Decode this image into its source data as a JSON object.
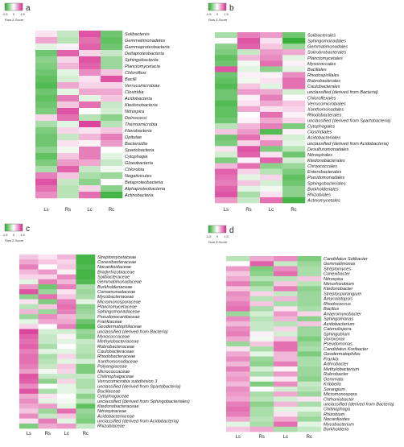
{
  "chart_data": [
    {
      "type": "heatmap",
      "panel_label": "a",
      "legend": {
        "ticks": [
          "-1.5",
          "0",
          "1.5"
        ],
        "label": "Row Z-Score"
      },
      "columns": [
        "Ls",
        "Rs",
        "Lc",
        "Rc"
      ],
      "rows": [
        "Solibacteres",
        "Gemmatimonadetes",
        "Gammaproteobacteria",
        "Deltaproteobacteria",
        "Sphingobacteriia",
        "Planctomycetacia",
        "Chloroflexi",
        "Bacilli",
        "Verrucomicrobiae",
        "Clostridia",
        "Acidobacteria",
        "Ktedonobacteria",
        "Nitrospira",
        "Deinococci",
        "Thermomicrobia",
        "Flavobacteria",
        "Opitutae",
        "Bacteroidia",
        "Spartobacteria",
        "Cytophagia",
        "Gloeobacteria",
        "Chlorobia",
        "Negativicutes",
        "Betaproteobacteria",
        "Alphaproteobacteria",
        "Actinobacteria"
      ],
      "values": [
        [
          0.2,
          -0.4,
          1.2,
          -1.0
        ],
        [
          0.6,
          -0.5,
          1.0,
          -1.1
        ],
        [
          -0.2,
          0.1,
          1.1,
          -1.0
        ],
        [
          -1.0,
          1.1,
          0.3,
          -0.4
        ],
        [
          -0.8,
          0.3,
          1.2,
          -0.7
        ],
        [
          -0.9,
          0.5,
          1.1,
          -0.7
        ],
        [
          -1.0,
          -0.2,
          0.8,
          0.4
        ],
        [
          -1.1,
          -0.3,
          0.2,
          1.2
        ],
        [
          -1.2,
          0.6,
          0.3,
          0.3
        ],
        [
          -1.0,
          -0.2,
          0.6,
          0.6
        ],
        [
          -1.1,
          0.9,
          -0.2,
          0.4
        ],
        [
          -1.0,
          0.4,
          1.0,
          -0.4
        ],
        [
          -0.9,
          1.2,
          0.0,
          -0.3
        ],
        [
          0.3,
          1.0,
          -0.5,
          -0.8
        ],
        [
          -0.6,
          -0.2,
          1.3,
          -0.5
        ],
        [
          -0.9,
          0.3,
          0.2,
          0.4
        ],
        [
          -1.0,
          -0.4,
          0.5,
          0.9
        ],
        [
          -1.0,
          0.2,
          0.1,
          0.7
        ],
        [
          -0.8,
          -0.1,
          0.9,
          0.0
        ],
        [
          -1.1,
          0.4,
          0.9,
          -0.2
        ],
        [
          -0.9,
          0.7,
          0.6,
          -0.4
        ],
        [
          -0.6,
          1.1,
          -0.4,
          -0.1
        ],
        [
          0.9,
          0.4,
          -0.6,
          -0.7
        ],
        [
          1.2,
          -0.4,
          -0.8,
          0.0
        ],
        [
          1.0,
          -0.5,
          0.3,
          -0.8
        ],
        [
          0.8,
          -0.5,
          1.0,
          -1.3
        ]
      ]
    },
    {
      "type": "heatmap",
      "panel_label": "b",
      "legend": {
        "ticks": [
          "-1.5",
          "0",
          "1.5"
        ],
        "label": "Row Z-Score"
      },
      "columns": [
        "Ls",
        "Rs",
        "Lc",
        "Rc"
      ],
      "rows": [
        "Solibacterales",
        "Sphingomonadales",
        "Gemmatimonadales",
        "Solirubrobacterales",
        "Planctomycetales",
        "Myxococcales",
        "Bacillales",
        "Rhodospirillales",
        "Rubrobacterales",
        "Caulobacterales",
        "unclassified (derived from Bacteria)",
        "Chloroflexales",
        "Verrucomicrobiales",
        "Xanthomonadales",
        "Rhodobacterales",
        "unclassified (derived from Spartobacteria)",
        "Cytophagales",
        "Clostridiales",
        "Acidobacteriales",
        "unclassified (derived from Acidobacteria)",
        "Desulfuromonadales",
        "Nitrospirales",
        "Ktedonobacterales",
        "Chroococcales",
        "Enterobacterales",
        "Pseudomonadales",
        "Sphingobacteriales",
        "Burkholderiales",
        "Rhizobiales",
        "Actinomycetales"
      ],
      "values": [
        [
          -0.6,
          0.9,
          0.7,
          -1.0
        ],
        [
          0.0,
          1.2,
          0.2,
          -1.4
        ],
        [
          -0.8,
          1.1,
          0.4,
          -0.7
        ],
        [
          -0.9,
          -0.4,
          0.7,
          0.6
        ],
        [
          -1.1,
          0.5,
          0.8,
          -0.2
        ],
        [
          -1.0,
          -0.1,
          1.0,
          0.1
        ],
        [
          1.2,
          -0.2,
          -0.8,
          -0.2
        ],
        [
          -1.0,
          0.1,
          0.1,
          0.8
        ],
        [
          -1.1,
          -0.1,
          0.2,
          1.0
        ],
        [
          -1.2,
          0.4,
          -0.2,
          1.0
        ],
        [
          -1.0,
          0.7,
          0.6,
          -0.3
        ],
        [
          -1.0,
          0.1,
          0.9,
          0.0
        ],
        [
          -1.2,
          0.2,
          0.6,
          0.4
        ],
        [
          -1.1,
          0.6,
          0.2,
          0.3
        ],
        [
          -1.1,
          0.0,
          1.0,
          0.1
        ],
        [
          -1.0,
          0.1,
          0.6,
          0.3
        ],
        [
          -0.5,
          0.5,
          0.9,
          -0.9
        ],
        [
          0.4,
          0.7,
          -1.2,
          0.1
        ],
        [
          -1.0,
          1.0,
          0.3,
          -0.3
        ],
        [
          -0.9,
          0.3,
          0.8,
          -0.2
        ],
        [
          0.2,
          1.2,
          -0.9,
          -0.5
        ],
        [
          -0.3,
          1.1,
          0.2,
          -1.0
        ],
        [
          -0.9,
          0.1,
          1.1,
          -0.3
        ],
        [
          0.5,
          1.0,
          -0.8,
          -0.7
        ],
        [
          1.1,
          0.3,
          -0.5,
          -0.9
        ],
        [
          1.0,
          -0.2,
          0.3,
          -1.1
        ],
        [
          0.9,
          0.4,
          -0.3,
          -1.0
        ],
        [
          1.1,
          -0.2,
          -0.1,
          -0.8
        ],
        [
          1.2,
          -0.6,
          0.2,
          -0.8
        ],
        [
          0.7,
          -0.4,
          1.0,
          -1.3
        ]
      ]
    },
    {
      "type": "heatmap",
      "panel_label": "c",
      "legend": {
        "ticks": [
          "-1.5",
          "0",
          "1.5"
        ],
        "label": "Row Z-Score"
      },
      "columns": [
        "Ls",
        "Rs",
        "Lc",
        "Rc"
      ],
      "rows": [
        "Streptomycetaceae",
        "Conexibacteraceae",
        "Nocardioidaceae",
        "Bradyrhizobiaceae",
        "Solibacteraceae",
        "Gemmatimonadaceae",
        "Burkholderiaceae",
        "Comamonadaceae",
        "Mycobacteriaceae",
        "Micromonosporaceae",
        "Planctomycetaceae",
        "Sphingomonadaceae",
        "Pseudonocardiaceae",
        "Frankiaceae",
        "Geodermatophilaceae",
        "unclassified (derived from Bacteria)",
        "Myxococcaceae",
        "Methylobacteriaceae",
        "Rubrobacteraceae",
        "Caulobacteraceae",
        "Rhodobacteraceae",
        "Xanthomonadaceae",
        "Polyangiaceae",
        "Micrococcaceae",
        "Chitinophagaceae",
        "Verrucomicrobia subdivision 3",
        "unclassified (derived from Spartobacteria)",
        "Bacillaceae",
        "Cytophagaceae",
        "unclassified (derived from Sphingobacteriales)",
        "Ktedonobacteraceae",
        "Nitrospiraceae",
        "Acidobacteriaceae",
        "unclassified (derived from Acidobacteria)",
        "Rhizobiaceae"
      ],
      "values": [
        [
          0.4,
          0.2,
          0.5,
          -1.3
        ],
        [
          0.6,
          0.4,
          0.3,
          -1.3
        ],
        [
          0.9,
          0.0,
          0.4,
          -1.2
        ],
        [
          0.5,
          0.7,
          0.1,
          -1.3
        ],
        [
          0.3,
          0.3,
          0.8,
          -1.3
        ],
        [
          -0.2,
          0.9,
          0.5,
          -1.2
        ],
        [
          0.7,
          -1.0,
          0.9,
          -0.6
        ],
        [
          1.2,
          -0.7,
          0.2,
          -0.7
        ],
        [
          -0.8,
          1.0,
          0.4,
          -0.6
        ],
        [
          0.2,
          -0.9,
          0.9,
          -0.2
        ],
        [
          -0.5,
          0.4,
          1.0,
          -0.8
        ],
        [
          0.5,
          -0.7,
          0.9,
          -0.7
        ],
        [
          -0.7,
          0.8,
          0.5,
          -0.6
        ],
        [
          -0.2,
          0.6,
          0.6,
          -1.0
        ],
        [
          0.3,
          0.0,
          0.9,
          -1.2
        ],
        [
          1.3,
          -0.3,
          -0.3,
          -0.7
        ],
        [
          1.1,
          -0.4,
          0.1,
          -0.8
        ],
        [
          1.0,
          -0.4,
          -0.2,
          -0.4
        ],
        [
          1.1,
          -0.6,
          0.0,
          -0.5
        ],
        [
          0.9,
          -0.2,
          -0.2,
          -0.5
        ],
        [
          1.0,
          -0.6,
          0.3,
          -0.6
        ],
        [
          1.0,
          -0.5,
          -0.2,
          -0.3
        ],
        [
          0.9,
          -0.4,
          0.4,
          -0.9
        ],
        [
          0.7,
          -0.1,
          0.3,
          -0.9
        ],
        [
          1.2,
          -0.4,
          -0.4,
          -0.4
        ],
        [
          1.1,
          -0.8,
          0.3,
          -0.6
        ],
        [
          0.8,
          0.0,
          -0.2,
          -0.6
        ],
        [
          1.2,
          -0.6,
          -0.2,
          -0.4
        ],
        [
          0.6,
          0.2,
          0.0,
          -0.8
        ],
        [
          0.8,
          -0.2,
          -0.1,
          -0.5
        ],
        [
          0.6,
          0.7,
          -0.2,
          -1.1
        ],
        [
          0.4,
          -0.7,
          1.0,
          -0.7
        ],
        [
          0.8,
          -0.4,
          0.4,
          -0.8
        ],
        [
          0.2,
          0.9,
          -0.2,
          -0.9
        ],
        [
          -0.9,
          0.6,
          0.7,
          -0.4
        ]
      ]
    },
    {
      "type": "heatmap",
      "panel_label": "d",
      "legend": {
        "ticks": [
          "-1.5",
          "0",
          "1.5"
        ],
        "label": "Row Z-Score"
      },
      "columns": [
        "Ls",
        "Rs",
        "Lc",
        "Rc"
      ],
      "rows": [
        "Candidatus Solibacter",
        "Gemmatimonas",
        "Streptomyces",
        "Conexibacter",
        "Nitrospira",
        "Mesorhizobium",
        "Ktedonobacter",
        "Streptosporangium",
        "Amycolatopsis",
        "Rhodococcus",
        "Bacillus",
        "Anaeromyxobacter",
        "Sphingomonas",
        "Acidobacterium",
        "Catenulispora",
        "Sphingobium",
        "Variovorax",
        "Pseudomonas",
        "Candidatus Koribacter",
        "Geodermatophilus",
        "Frankia",
        "Arthrobacter",
        "Methylobacterium",
        "Rubrobacter",
        "Gemmata",
        "Kribbella",
        "Sorangium",
        "Micromonospora",
        "Chthoniobacter",
        "unclassified (derived from Bacteria)",
        "Chitinophaga",
        "Rhizobium",
        "Nocardioides",
        "Mycobacterium",
        "Burkholderia"
      ],
      "values": [
        [
          -0.5,
          0.6,
          0.8,
          -0.9
        ],
        [
          0.0,
          1.1,
          -0.4,
          -0.7
        ],
        [
          0.7,
          -0.9,
          0.8,
          -0.6
        ],
        [
          0.4,
          -0.8,
          1.0,
          -0.6
        ],
        [
          0.6,
          -0.5,
          -0.5,
          0.4
        ],
        [
          0.9,
          -0.8,
          0.4,
          -0.5
        ],
        [
          0.4,
          -0.5,
          0.9,
          -0.8
        ],
        [
          0.8,
          0.3,
          -0.4,
          -0.7
        ],
        [
          0.7,
          -0.5,
          0.5,
          -0.7
        ],
        [
          0.9,
          0.4,
          -0.6,
          -0.7
        ],
        [
          1.0,
          -0.6,
          0.2,
          -0.6
        ],
        [
          -0.7,
          -0.3,
          0.7,
          0.3
        ],
        [
          0.8,
          -0.5,
          0.5,
          -0.8
        ],
        [
          0.5,
          -0.4,
          -0.5,
          0.4
        ],
        [
          0.8,
          -0.4,
          0.3,
          -0.7
        ],
        [
          0.9,
          0.1,
          -0.3,
          -0.7
        ],
        [
          0.6,
          -0.1,
          0.4,
          -0.9
        ],
        [
          -0.7,
          0.4,
          1.0,
          -0.7
        ],
        [
          0.2,
          -0.6,
          1.0,
          -0.6
        ],
        [
          0.6,
          -0.2,
          0.5,
          -0.9
        ],
        [
          0.8,
          -0.7,
          0.5,
          -0.6
        ],
        [
          0.5,
          -0.8,
          0.9,
          -0.6
        ],
        [
          0.9,
          -0.3,
          0.1,
          -0.7
        ],
        [
          0.6,
          -0.6,
          0.7,
          -0.7
        ],
        [
          0.7,
          -0.1,
          0.2,
          -0.8
        ],
        [
          0.5,
          -0.9,
          0.8,
          -0.4
        ],
        [
          0.8,
          0.0,
          -0.3,
          -0.5
        ],
        [
          0.7,
          -0.6,
          0.6,
          -0.7
        ],
        [
          0.6,
          -0.5,
          -0.3,
          0.2
        ],
        [
          0.9,
          -0.8,
          0.5,
          -0.6
        ],
        [
          1.0,
          -0.6,
          -0.2,
          -0.2
        ],
        [
          0.9,
          -0.6,
          0.2,
          -0.5
        ],
        [
          0.6,
          -0.5,
          0.6,
          -0.7
        ],
        [
          -0.2,
          -0.6,
          1.0,
          -0.2
        ],
        [
          0.4,
          0.6,
          -0.6,
          -0.4
        ]
      ]
    }
  ]
}
